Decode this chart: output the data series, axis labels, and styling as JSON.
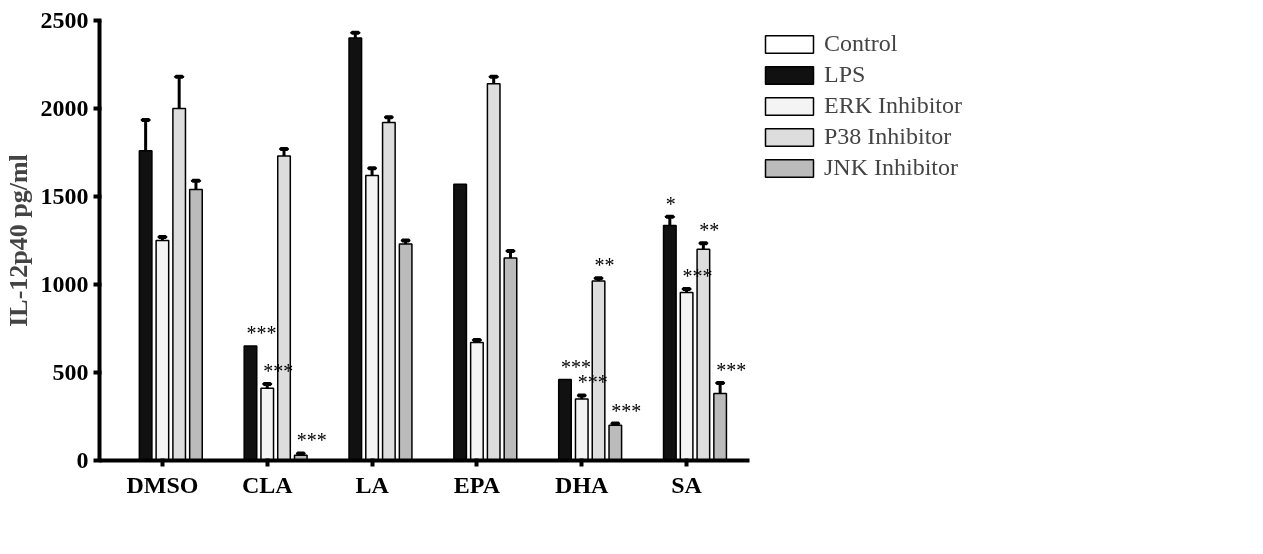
{
  "chart_data": {
    "type": "bar",
    "ylabel": "IL-12p40 pg/ml",
    "categories": [
      "DMSO",
      "CLA",
      "LA",
      "EPA",
      "DHA",
      "SA"
    ],
    "series": [
      {
        "name": "Control",
        "color": "#ffffff",
        "values": [
          null,
          null,
          null,
          null,
          null,
          null
        ]
      },
      {
        "name": "LPS",
        "color": "#111111",
        "values": [
          1760,
          650,
          2400,
          1570,
          460,
          1335
        ],
        "errors": [
          175,
          null,
          30,
          null,
          null,
          50
        ],
        "value_labels": [
          null,
          "***",
          null,
          null,
          "***",
          "*"
        ]
      },
      {
        "name": "ERK Inhibitor",
        "color": "#f4f4f4",
        "values": [
          1250,
          410,
          1620,
          670,
          350,
          955
        ],
        "errors": [
          20,
          25,
          40,
          15,
          20,
          20
        ],
        "value_labels": [
          null,
          "***",
          null,
          null,
          "***",
          "***"
        ]
      },
      {
        "name": "P38 Inhibitor",
        "color": "#dddddd",
        "values": [
          2000,
          1730,
          1920,
          2140,
          1020,
          1200
        ],
        "errors": [
          180,
          40,
          30,
          40,
          15,
          35
        ],
        "value_labels": [
          null,
          null,
          null,
          null,
          "**",
          "**"
        ]
      },
      {
        "name": "JNK Inhibitor",
        "color": "#bbbbbb",
        "values": [
          1540,
          30,
          1230,
          1150,
          200,
          380
        ],
        "errors": [
          50,
          10,
          20,
          40,
          10,
          60
        ],
        "value_labels": [
          null,
          "***",
          null,
          null,
          "***",
          "***"
        ]
      }
    ],
    "ylim": [
      0,
      2500
    ],
    "yticks": [
      0,
      500,
      1000,
      1500,
      2000,
      2500
    ],
    "grid": false,
    "legend": "right"
  }
}
